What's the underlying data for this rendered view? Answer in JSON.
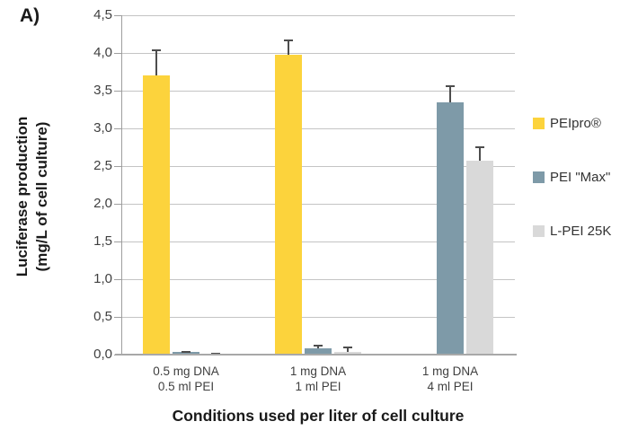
{
  "panel_label": "A)",
  "chart_data": {
    "type": "bar",
    "title": "A)",
    "xlabel": "Conditions used per liter of cell culture",
    "ylabel_line1": "Luciferase production",
    "ylabel_line2": "(mg/L of cell culture)",
    "ylim": [
      0,
      4.5
    ],
    "ytick_step": 0.5,
    "ytick_labels": [
      "0,0",
      "0,5",
      "1,0",
      "1,5",
      "2,0",
      "2,5",
      "3,0",
      "3,5",
      "4,0",
      "4,5"
    ],
    "grid": true,
    "legend_position": "right",
    "categories": [
      [
        "0.5 mg DNA",
        "0.5 ml PEI"
      ],
      [
        "1 mg DNA",
        "1 ml PEI"
      ],
      [
        "1 mg DNA",
        "4 ml PEI"
      ]
    ],
    "series": [
      {
        "name": "PEIpro®",
        "color": "#FCD33C",
        "values": [
          3.7,
          3.98,
          null
        ],
        "errors": [
          0.35,
          0.2,
          null
        ]
      },
      {
        "name": "PEI \"Max\"",
        "color": "#7E9AA8",
        "values": [
          0.03,
          0.08,
          3.35
        ],
        "errors": [
          0.02,
          0.05,
          0.22
        ]
      },
      {
        "name": "L-PEI 25K",
        "color": "#D9D9D9",
        "values": [
          0.01,
          0.04,
          2.57
        ],
        "errors": [
          0.02,
          0.07,
          0.19
        ]
      }
    ],
    "colors": {
      "gridline": "#C4C4C4",
      "axis": "#9E9E9E",
      "error_bar": "#4D4D4D",
      "text": "#3F3F3F"
    }
  }
}
